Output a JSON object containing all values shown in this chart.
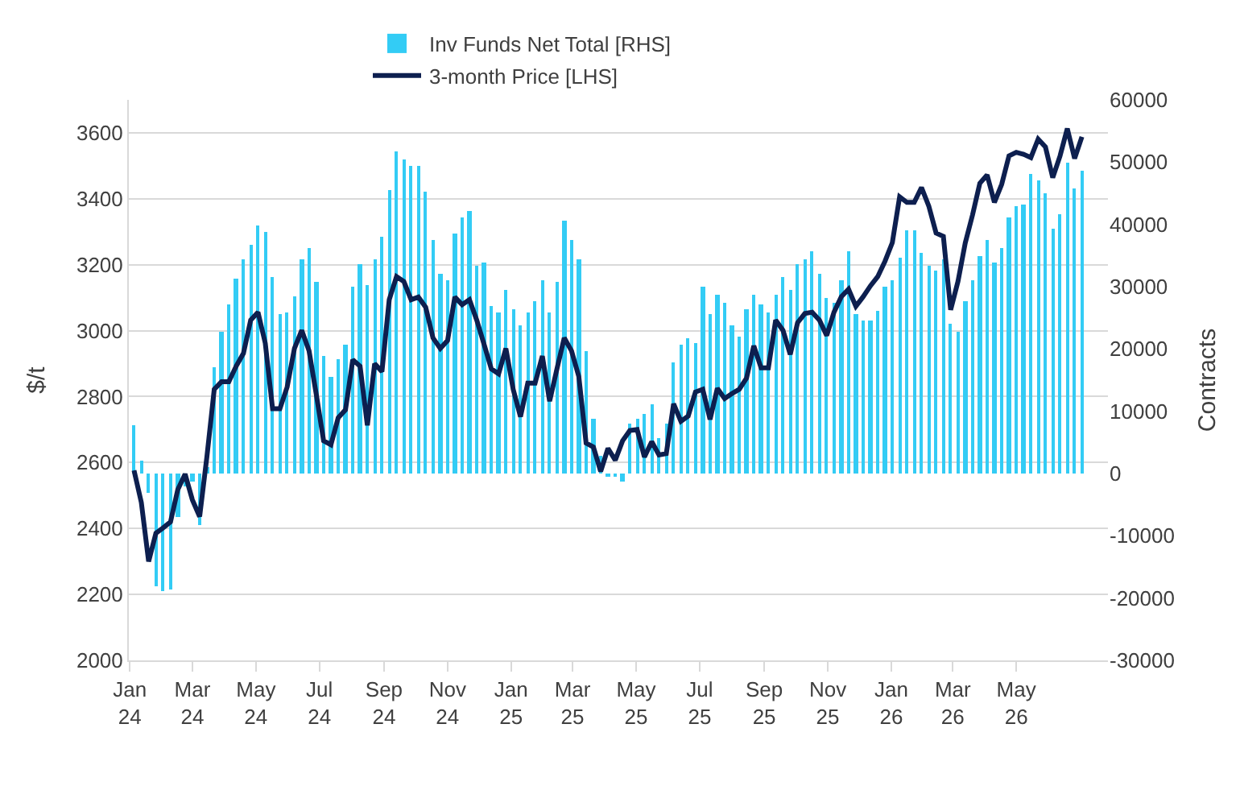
{
  "chart_data": {
    "type": "bar",
    "x": [
      "2024-01-05",
      "2024-01-12",
      "2024-01-19",
      "2024-01-26",
      "2024-02-02",
      "2024-02-09",
      "2024-02-16",
      "2024-02-23",
      "2024-03-01",
      "2024-03-08",
      "2024-03-15",
      "2024-03-22",
      "2024-03-29",
      "2024-04-05",
      "2024-04-12",
      "2024-04-19",
      "2024-04-26",
      "2024-05-03",
      "2024-05-10",
      "2024-05-17",
      "2024-05-24",
      "2024-05-31",
      "2024-06-07",
      "2024-06-14",
      "2024-06-21",
      "2024-06-28",
      "2024-07-05",
      "2024-07-12",
      "2024-07-19",
      "2024-07-26",
      "2024-08-02",
      "2024-08-09",
      "2024-08-16",
      "2024-08-23",
      "2024-08-30",
      "2024-09-06",
      "2024-09-13",
      "2024-09-20",
      "2024-09-27",
      "2024-10-04",
      "2024-10-11",
      "2024-10-18",
      "2024-10-25",
      "2024-11-01",
      "2024-11-08",
      "2024-11-15",
      "2024-11-22",
      "2024-11-29",
      "2024-12-06",
      "2024-12-13",
      "2024-12-20",
      "2024-12-27",
      "2025-01-03",
      "2025-01-10",
      "2025-01-17",
      "2025-01-24",
      "2025-01-31",
      "2025-02-07",
      "2025-02-14",
      "2025-02-21",
      "2025-02-28",
      "2025-03-07",
      "2025-03-14",
      "2025-03-21",
      "2025-03-28",
      "2025-04-04",
      "2025-04-11",
      "2025-04-18",
      "2025-04-25",
      "2025-05-02",
      "2025-05-09",
      "2025-05-16",
      "2025-05-23",
      "2025-05-30",
      "2025-06-06",
      "2025-06-13",
      "2025-06-20",
      "2025-06-27",
      "2025-07-04",
      "2025-07-11",
      "2025-07-18",
      "2025-07-25",
      "2025-08-01",
      "2025-08-08",
      "2025-08-15",
      "2025-08-22",
      "2025-08-29",
      "2025-09-05",
      "2025-09-12",
      "2025-09-19",
      "2025-09-26",
      "2025-10-03",
      "2025-10-10",
      "2025-10-17",
      "2025-10-24",
      "2025-10-31",
      "2025-11-07",
      "2025-11-14",
      "2025-11-21",
      "2025-11-28",
      "2025-12-05",
      "2025-12-12",
      "2025-12-19",
      "2025-12-26",
      "2026-01-02",
      "2026-01-09",
      "2026-01-16",
      "2026-01-23",
      "2026-01-30",
      "2026-02-06",
      "2026-02-13",
      "2026-02-20",
      "2026-02-27",
      "2026-03-06",
      "2026-03-13",
      "2026-03-20",
      "2026-03-27",
      "2026-04-03",
      "2026-04-10",
      "2026-04-17",
      "2026-04-24",
      "2026-05-01",
      "2026-05-08",
      "2026-05-15",
      "2026-05-22",
      "2026-05-29",
      "2026-06-05",
      "2026-06-12",
      "2026-06-19",
      "2026-06-26",
      "2026-07-03"
    ],
    "series": [
      {
        "name": "Inv Funds Net Total [RHS]",
        "axis": "y2",
        "color": "#33ccf5",
        "values": [
          7700,
          2100,
          -3000,
          -18200,
          -19000,
          -18600,
          -7100,
          -2000,
          -1300,
          -8300,
          1000,
          17000,
          22800,
          27100,
          31300,
          34300,
          36800,
          39700,
          38800,
          31600,
          25500,
          25800,
          28400,
          34300,
          36200,
          30700,
          19000,
          15500,
          18400,
          20700,
          30000,
          33600,
          30300,
          34500,
          38100,
          45600,
          51700,
          50400,
          49400,
          49400,
          45200,
          37400,
          32000,
          31000,
          38500,
          41000,
          42200,
          33300,
          33900,
          26900,
          25900,
          29400,
          26300,
          23900,
          25900,
          27800,
          31000,
          25900,
          30700,
          40700,
          37500,
          34300,
          19700,
          8700,
          2800,
          -500,
          -600,
          -1200,
          7900,
          8800,
          9600,
          11200,
          5700,
          7900,
          17800,
          20700,
          21600,
          20900,
          30000,
          25500,
          28800,
          27400,
          23800,
          21900,
          26500,
          28800,
          27100,
          25900,
          28700,
          31600,
          29400,
          33500,
          34300,
          35800,
          32100,
          28200,
          27300,
          31100,
          35800,
          25700,
          24500,
          24500,
          26100,
          30000,
          31000,
          34600,
          39100,
          39100,
          35500,
          33300,
          32700,
          34400,
          24000,
          22700,
          27800,
          31000,
          34900,
          37600,
          33900,
          36200,
          41100,
          43000,
          43300,
          48000,
          47100,
          45000,
          39200,
          41700,
          49800,
          45700,
          48500
        ]
      },
      {
        "name": "3-month Price [LHS]",
        "type": "line",
        "axis": "y",
        "color": "#0d1f4f",
        "values": [
          2576,
          2479,
          2300,
          2386,
          2402,
          2420,
          2518,
          2565,
          2487,
          2436,
          2619,
          2822,
          2845,
          2845,
          2892,
          2931,
          3032,
          3056,
          2962,
          2763,
          2763,
          2829,
          2946,
          3001,
          2939,
          2806,
          2666,
          2654,
          2736,
          2760,
          2912,
          2892,
          2713,
          2900,
          2876,
          3094,
          3164,
          3149,
          3094,
          3102,
          3071,
          2978,
          2946,
          2970,
          3102,
          3079,
          3094,
          3032,
          2959,
          2884,
          2869,
          2946,
          2822,
          2739,
          2841,
          2841,
          2923,
          2786,
          2884,
          2978,
          2939,
          2861,
          2659,
          2647,
          2573,
          2643,
          2607,
          2666,
          2697,
          2700,
          2617,
          2663,
          2623,
          2627,
          2778,
          2725,
          2741,
          2814,
          2822,
          2731,
          2825,
          2794,
          2809,
          2822,
          2856,
          2954,
          2887,
          2887,
          3032,
          3001,
          2928,
          3024,
          3052,
          3056,
          3032,
          2985,
          3056,
          3103,
          3126,
          3074,
          3103,
          3136,
          3164,
          3211,
          3267,
          3406,
          3389,
          3389,
          3434,
          3378,
          3296,
          3286,
          3063,
          3149,
          3266,
          3351,
          3447,
          3472,
          3389,
          3444,
          3530,
          3541,
          3535,
          3525,
          3581,
          3557,
          3464,
          3530,
          3613,
          3522,
          3588
        ]
      }
    ],
    "xlim": [
      "2023-12-31",
      "2026-07-28"
    ],
    "xticks": [
      {
        "value": "2024-01-01",
        "label": "Jan\n24"
      },
      {
        "value": "2024-03-01",
        "label": "Mar\n24"
      },
      {
        "value": "2024-05-01",
        "label": "May\n24"
      },
      {
        "value": "2024-07-01",
        "label": "Jul\n24"
      },
      {
        "value": "2024-09-01",
        "label": "Sep\n24"
      },
      {
        "value": "2024-11-01",
        "label": "Nov\n24"
      },
      {
        "value": "2025-01-01",
        "label": "Jan\n25"
      },
      {
        "value": "2025-03-01",
        "label": "Mar\n25"
      },
      {
        "value": "2025-05-01",
        "label": "May\n25"
      },
      {
        "value": "2025-07-01",
        "label": "Jul\n25"
      },
      {
        "value": "2025-09-01",
        "label": "Sep\n25"
      },
      {
        "value": "2025-11-01",
        "label": "Nov\n25"
      },
      {
        "value": "2026-01-01",
        "label": "Jan\n26"
      },
      {
        "value": "2026-03-01",
        "label": "Mar\n26"
      },
      {
        "value": "2026-05-01",
        "label": "May\n26"
      }
    ],
    "ylim": [
      2000,
      3700
    ],
    "yticks": [
      2000,
      2200,
      2400,
      2600,
      2800,
      3000,
      3200,
      3400,
      3600
    ],
    "y2lim": [
      -30000,
      60000
    ],
    "y2ticks": [
      -30000,
      -20000,
      -10000,
      0,
      10000,
      20000,
      30000,
      40000,
      50000,
      60000
    ],
    "ylabel": "$/t",
    "y2label": "Contracts",
    "grid": "y",
    "legend": "top"
  }
}
